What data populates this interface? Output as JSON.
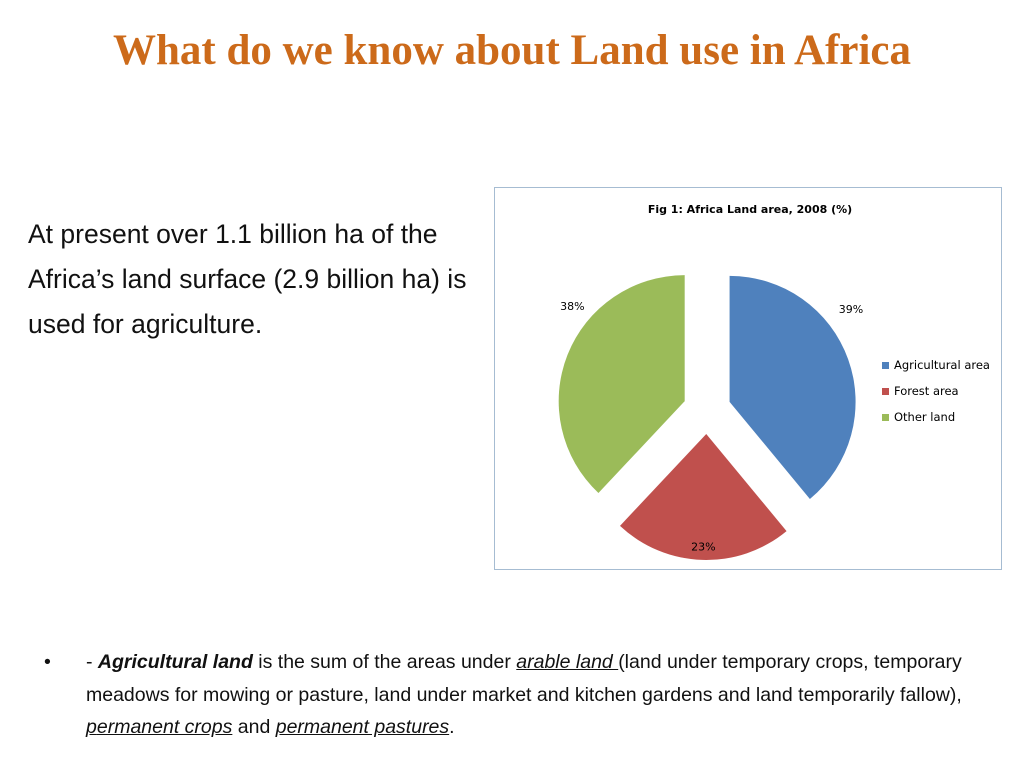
{
  "slide": {
    "title": "What do we know about Land use in Africa",
    "intro": "At present over 1.1 billion ha of the Africa’s land surface (2.9 billion ha) is used for agriculture."
  },
  "bullet": {
    "marker": "•",
    "dash": "- ",
    "term": "Agricultural land",
    "t1": " is the sum of the areas under ",
    "link1": "arable land ",
    "t2": "(land under temporary crops, temporary meadows for mowing or pasture, land under market and kitchen gardens and land temporarily fallow), ",
    "t2b": "p",
    "link2": "ermanent crops",
    "t3": " and ",
    "link3": "permanent pastures",
    "t4": "."
  },
  "chart_data": {
    "type": "pie",
    "title": "Fig 1: Africa Land area, 2008 (%)",
    "legend_position": "right",
    "exploded": true,
    "slices": [
      {
        "name": "Agricultural area",
        "value": 39,
        "label": "39%",
        "color": "#4F81BD"
      },
      {
        "name": "Forest area",
        "value": 23,
        "label": "23%",
        "color": "#C0504D"
      },
      {
        "name": "Other land",
        "value": 38,
        "label": "38%",
        "color": "#9BBB59"
      }
    ]
  }
}
